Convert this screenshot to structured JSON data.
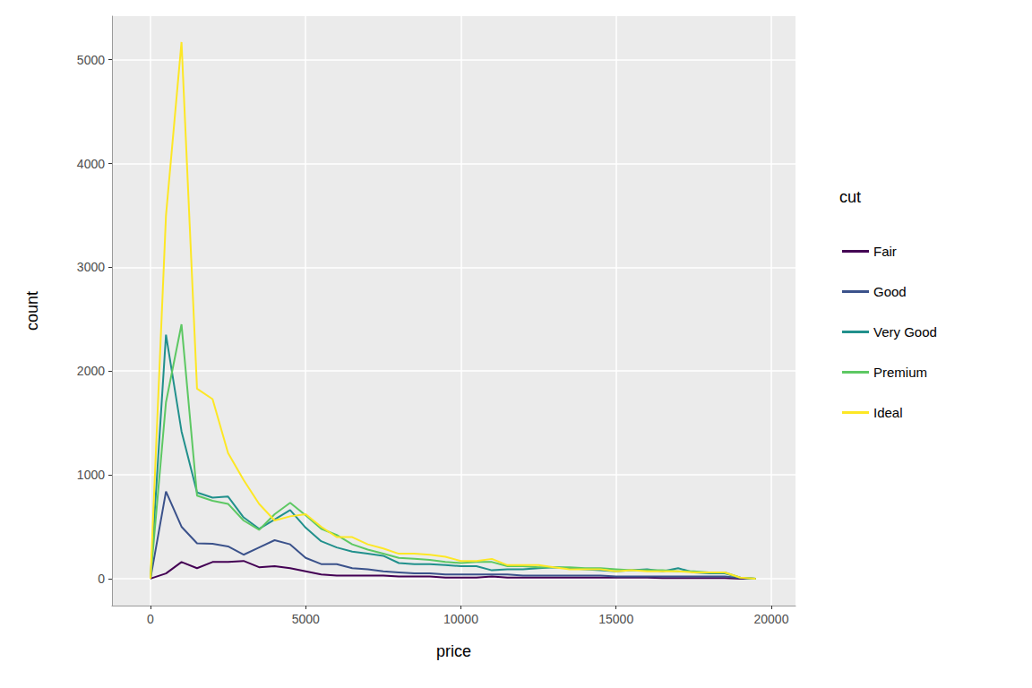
{
  "chart_data": {
    "type": "line",
    "x_label": "price",
    "y_label": "count",
    "legend_title": "cut",
    "legend": "right",
    "grid": true,
    "x": [
      0,
      500,
      1000,
      1500,
      2000,
      2500,
      3000,
      3500,
      4000,
      4500,
      5000,
      5500,
      6000,
      6500,
      7000,
      7500,
      8000,
      8500,
      9000,
      9500,
      10000,
      10500,
      11000,
      11500,
      12000,
      12500,
      13000,
      13500,
      14000,
      14500,
      15000,
      15500,
      16000,
      16500,
      17000,
      17500,
      18000,
      18500,
      19000,
      19500
    ],
    "xlim": [
      -1240,
      20780
    ],
    "xticks": [
      0,
      5000,
      10000,
      15000,
      20000
    ],
    "ylim": [
      -260,
      5420
    ],
    "yticks": [
      0,
      1000,
      2000,
      3000,
      4000,
      5000
    ],
    "series": [
      {
        "name": "Fair",
        "color": "#440154",
        "values": [
          0,
          50,
          160,
          100,
          160,
          160,
          170,
          110,
          120,
          100,
          70,
          40,
          30,
          30,
          30,
          30,
          20,
          20,
          20,
          10,
          10,
          10,
          20,
          10,
          10,
          10,
          10,
          10,
          10,
          10,
          10,
          10,
          10,
          5,
          5,
          5,
          5,
          5,
          0,
          0
        ]
      },
      {
        "name": "Good",
        "color": "#3B528B",
        "values": [
          0,
          840,
          500,
          340,
          335,
          310,
          230,
          300,
          370,
          330,
          200,
          140,
          140,
          100,
          90,
          70,
          60,
          50,
          50,
          40,
          40,
          40,
          40,
          40,
          30,
          30,
          30,
          30,
          30,
          30,
          20,
          20,
          20,
          20,
          20,
          20,
          20,
          20,
          5,
          0
        ]
      },
      {
        "name": "Very Good",
        "color": "#21908C",
        "values": [
          0,
          2350,
          1420,
          830,
          780,
          790,
          590,
          480,
          570,
          660,
          490,
          360,
          300,
          260,
          240,
          220,
          150,
          140,
          140,
          130,
          120,
          120,
          80,
          90,
          90,
          100,
          110,
          100,
          90,
          80,
          70,
          80,
          90,
          70,
          100,
          60,
          50,
          50,
          10,
          0
        ]
      },
      {
        "name": "Premium",
        "color": "#5DC863",
        "values": [
          0,
          1700,
          2450,
          800,
          750,
          720,
          560,
          470,
          620,
          730,
          610,
          480,
          420,
          330,
          280,
          240,
          200,
          190,
          180,
          160,
          150,
          160,
          160,
          120,
          120,
          110,
          110,
          110,
          100,
          100,
          90,
          80,
          80,
          80,
          70,
          70,
          60,
          60,
          10,
          0
        ]
      },
      {
        "name": "Ideal",
        "color": "#FDE725",
        "values": [
          0,
          3500,
          5170,
          1830,
          1730,
          1210,
          950,
          720,
          560,
          600,
          620,
          500,
          400,
          400,
          330,
          290,
          240,
          240,
          230,
          210,
          170,
          170,
          190,
          130,
          130,
          130,
          110,
          90,
          90,
          90,
          70,
          80,
          70,
          70,
          70,
          60,
          60,
          60,
          10,
          0
        ]
      }
    ]
  }
}
